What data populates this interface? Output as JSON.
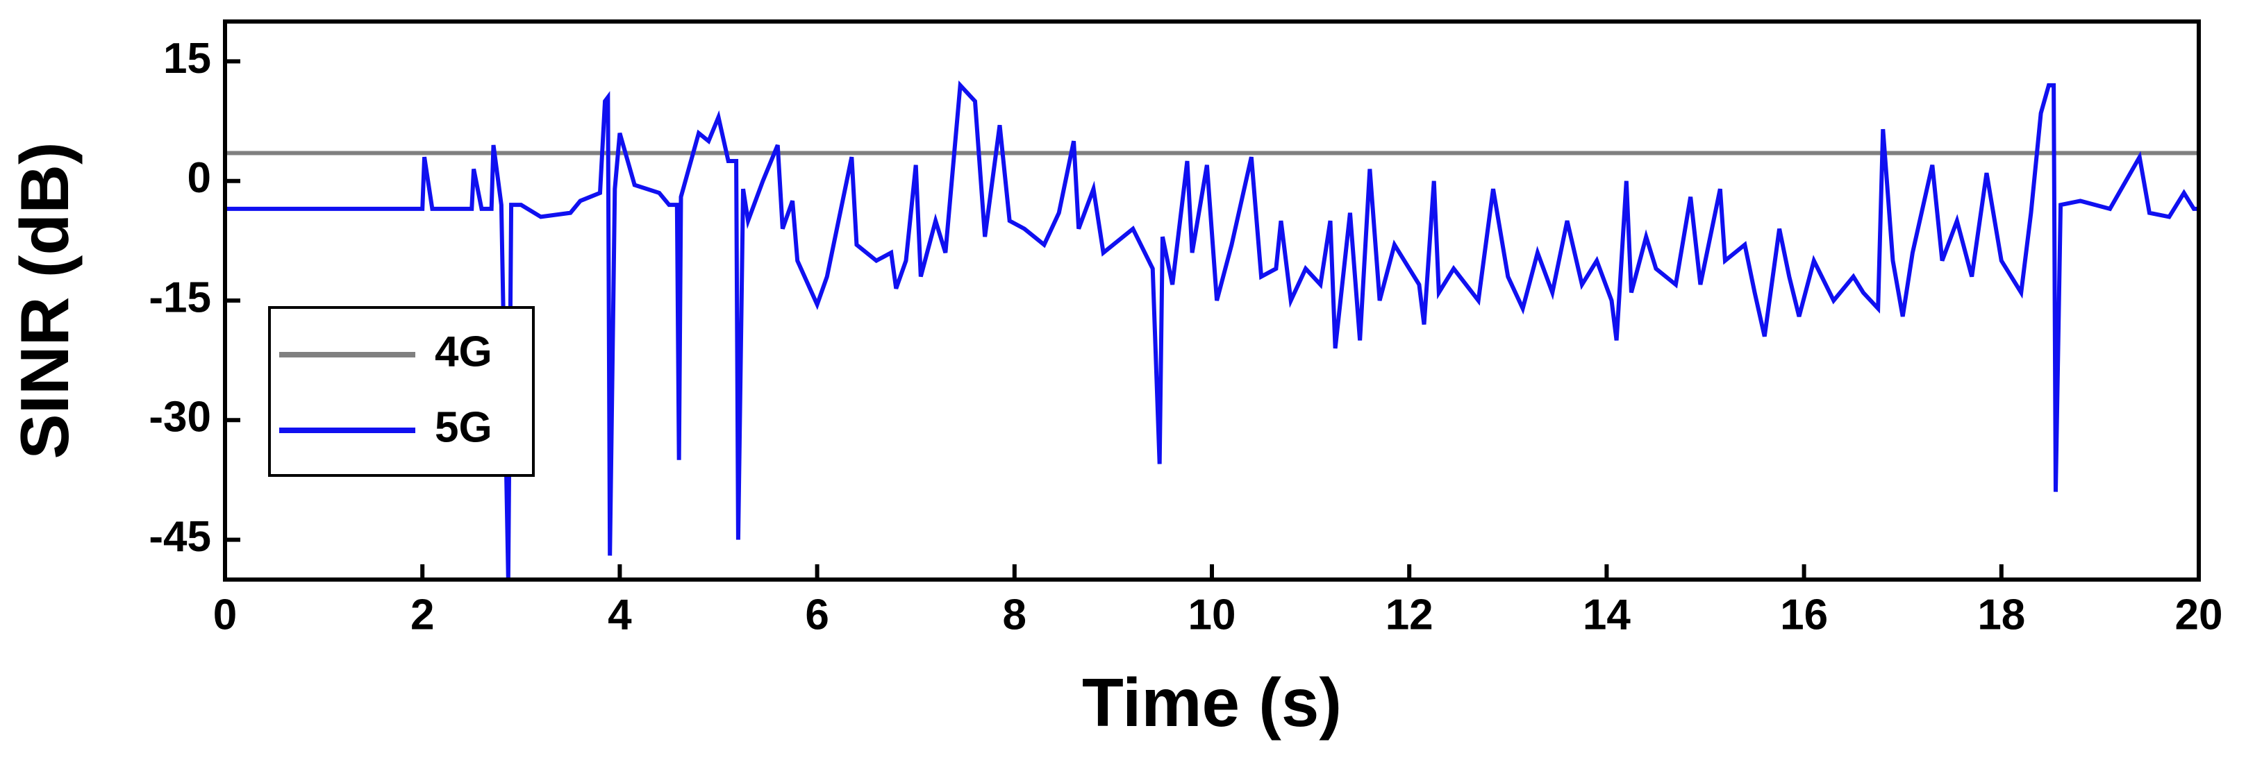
{
  "chart_data": {
    "type": "line",
    "x_label": "Time (s)",
    "y_label": "SINR (dB)",
    "xlim": [
      0,
      20
    ],
    "ylim": [
      -50,
      20
    ],
    "xticks": [
      0,
      2,
      4,
      6,
      8,
      10,
      12,
      14,
      16,
      18,
      20
    ],
    "yticks": [
      15,
      0,
      -15,
      -30,
      -45
    ],
    "legend": "lower-left",
    "series": [
      {
        "name": "4G",
        "color": "#808080",
        "x": [
          0,
          20
        ],
        "values": [
          3.5,
          3.5
        ]
      },
      {
        "name": "5G",
        "color": "#1010f0",
        "x": [
          0,
          2.0,
          2.02,
          2.1,
          2.5,
          2.52,
          2.6,
          2.7,
          2.72,
          2.8,
          2.87,
          2.9,
          3.0,
          3.2,
          3.5,
          3.6,
          3.8,
          3.85,
          3.88,
          3.9,
          3.95,
          4.0,
          4.15,
          4.4,
          4.5,
          4.58,
          4.6,
          4.62,
          4.8,
          4.9,
          5.0,
          5.1,
          5.18,
          5.2,
          5.25,
          5.3,
          5.45,
          5.6,
          5.65,
          5.75,
          5.8,
          6.0,
          6.1,
          6.2,
          6.35,
          6.4,
          6.6,
          6.75,
          6.8,
          6.9,
          7.0,
          7.05,
          7.2,
          7.3,
          7.45,
          7.6,
          7.7,
          7.85,
          7.95,
          8.1,
          8.3,
          8.45,
          8.6,
          8.65,
          8.8,
          8.9,
          9.2,
          9.4,
          9.47,
          9.5,
          9.6,
          9.75,
          9.8,
          9.95,
          10.05,
          10.2,
          10.4,
          10.5,
          10.65,
          10.7,
          10.8,
          10.95,
          11.1,
          11.2,
          11.25,
          11.4,
          11.5,
          11.6,
          11.7,
          11.85,
          11.95,
          12.1,
          12.15,
          12.25,
          12.3,
          12.45,
          12.7,
          12.85,
          13.0,
          13.15,
          13.3,
          13.45,
          13.6,
          13.75,
          13.9,
          14.05,
          14.1,
          14.2,
          14.25,
          14.4,
          14.5,
          14.7,
          14.85,
          14.95,
          15.15,
          15.2,
          15.4,
          15.5,
          15.6,
          15.75,
          15.85,
          15.95,
          16.1,
          16.3,
          16.5,
          16.6,
          16.75,
          16.8,
          16.9,
          17.0,
          17.1,
          17.3,
          17.4,
          17.55,
          17.7,
          17.85,
          18.0,
          18.2,
          18.3,
          18.4,
          18.48,
          18.53,
          18.55,
          18.6,
          18.8,
          19.1,
          19.4,
          19.5,
          19.7,
          19.85,
          19.95,
          20.0
        ],
        "values": [
          -3.5,
          -3.5,
          3,
          -3.5,
          -3.5,
          1.5,
          -3.5,
          -3.5,
          4.5,
          -3,
          -50,
          -3,
          -3,
          -4.5,
          -4,
          -2.5,
          -1.5,
          10,
          10.5,
          -47,
          -1,
          6,
          -0.5,
          -1.5,
          -3,
          -3,
          -35,
          -2,
          6,
          5,
          8,
          2.5,
          2.5,
          -45,
          -1,
          -5,
          0,
          4.5,
          -6,
          -2.5,
          -10,
          -15.5,
          -12,
          -6,
          3,
          -8,
          -10,
          -9,
          -13.5,
          -10,
          2,
          -12,
          -5,
          -9,
          12,
          10,
          -7,
          7,
          -5,
          -6,
          -8,
          -4,
          5,
          -6,
          -1,
          -9,
          -6,
          -11,
          -35.5,
          -7,
          -13,
          2.5,
          -9,
          2,
          -15,
          -8,
          3,
          -12,
          -11,
          -5,
          -15,
          -11,
          -13,
          -5,
          -21,
          -4,
          -20,
          1.5,
          -15,
          -8,
          -10,
          -13,
          -18,
          0,
          -14,
          -11,
          -15,
          -1,
          -12,
          -16,
          -9,
          -14,
          -5,
          -13,
          -10,
          -15,
          -20,
          0,
          -14,
          -7,
          -11,
          -13,
          -2,
          -13,
          -1,
          -10,
          -8,
          -14,
          -19.5,
          -6,
          -12,
          -17,
          -10,
          -15,
          -12,
          -14,
          -16,
          6.5,
          -10,
          -17,
          -9,
          2,
          -10,
          -5,
          -12,
          1,
          -10,
          -14,
          -4,
          8.5,
          12,
          12,
          -39,
          -3,
          -2.5,
          -3.5,
          3,
          -4,
          -4.5,
          -1.5,
          -3.5,
          -3.5
        ]
      }
    ]
  }
}
